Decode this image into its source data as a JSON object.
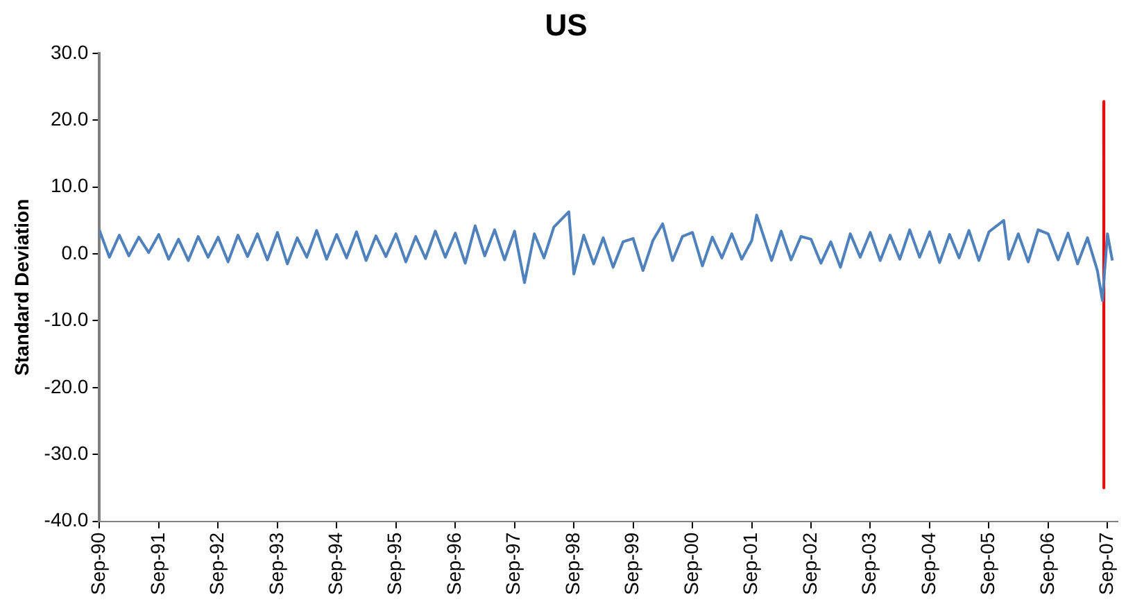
{
  "chart_data": {
    "type": "line",
    "title": "US",
    "ylabel": "Standard Deviation",
    "marker": "none",
    "grid": false,
    "legend": false,
    "xlim": [
      "1990-09-01",
      "2007-11-01"
    ],
    "xticks": [
      {
        "value": "1990-09-01",
        "label": "Sep-90"
      },
      {
        "value": "1991-09-01",
        "label": "Sep-91"
      },
      {
        "value": "1992-09-01",
        "label": "Sep-92"
      },
      {
        "value": "1993-09-01",
        "label": "Sep-93"
      },
      {
        "value": "1994-09-01",
        "label": "Sep-94"
      },
      {
        "value": "1995-09-01",
        "label": "Sep-95"
      },
      {
        "value": "1996-09-01",
        "label": "Sep-96"
      },
      {
        "value": "1997-09-01",
        "label": "Sep-97"
      },
      {
        "value": "1998-09-01",
        "label": "Sep-98"
      },
      {
        "value": "1999-09-01",
        "label": "Sep-99"
      },
      {
        "value": "2000-09-01",
        "label": "Sep-00"
      },
      {
        "value": "2001-09-01",
        "label": "Sep-01"
      },
      {
        "value": "2002-09-01",
        "label": "Sep-02"
      },
      {
        "value": "2003-09-01",
        "label": "Sep-03"
      },
      {
        "value": "2004-09-01",
        "label": "Sep-04"
      },
      {
        "value": "2005-09-01",
        "label": "Sep-05"
      },
      {
        "value": "2006-09-01",
        "label": "Sep-06"
      },
      {
        "value": "2007-09-01",
        "label": "Sep-07"
      }
    ],
    "ylim": [
      -40,
      30
    ],
    "yticks": [
      {
        "value": -40,
        "label": "-40.0"
      },
      {
        "value": -30,
        "label": "-30.0"
      },
      {
        "value": -20,
        "label": "-20.0"
      },
      {
        "value": -10,
        "label": "-10.0"
      },
      {
        "value": 0,
        "label": "0.0"
      },
      {
        "value": 10,
        "label": "10.0"
      },
      {
        "value": 20,
        "label": "20.0"
      },
      {
        "value": 30,
        "label": "30.0"
      }
    ],
    "series": [
      {
        "color": "#4f81bd",
        "x": [
          "1990-09",
          "1990-11",
          "1991-01",
          "1991-03",
          "1991-05",
          "1991-07",
          "1991-09",
          "1991-11",
          "1992-01",
          "1992-03",
          "1992-05",
          "1992-07",
          "1992-09",
          "1992-11",
          "1993-01",
          "1993-03",
          "1993-05",
          "1993-07",
          "1993-09",
          "1993-11",
          "1994-01",
          "1994-03",
          "1994-05",
          "1994-07",
          "1994-09",
          "1994-11",
          "1995-01",
          "1995-03",
          "1995-05",
          "1995-07",
          "1995-09",
          "1995-11",
          "1996-01",
          "1996-03",
          "1996-05",
          "1996-07",
          "1996-09",
          "1996-11",
          "1997-01",
          "1997-03",
          "1997-05",
          "1997-07",
          "1997-09",
          "1997-11",
          "1998-01",
          "1998-03",
          "1998-05",
          "1998-08",
          "1998-09",
          "1998-11",
          "1999-01",
          "1999-03",
          "1999-05",
          "1999-07",
          "1999-09",
          "1999-11",
          "2000-01",
          "2000-03",
          "2000-05",
          "2000-07",
          "2000-09",
          "2000-11",
          "2001-01",
          "2001-03",
          "2001-05",
          "2001-07",
          "2001-09",
          "2001-10",
          "2002-01",
          "2002-03",
          "2002-05",
          "2002-07",
          "2002-09",
          "2002-11",
          "2003-01",
          "2003-03",
          "2003-05",
          "2003-07",
          "2003-09",
          "2003-11",
          "2004-01",
          "2004-03",
          "2004-05",
          "2004-07",
          "2004-09",
          "2004-11",
          "2005-01",
          "2005-03",
          "2005-05",
          "2005-07",
          "2005-09",
          "2005-12",
          "2006-01",
          "2006-03",
          "2006-05",
          "2006-07",
          "2006-09",
          "2006-11",
          "2007-01",
          "2007-03",
          "2007-05",
          "2007-07",
          "2007-08",
          "2007-09",
          "2007-10"
        ],
        "values": [
          3.5,
          -0.5,
          2.8,
          -0.3,
          2.5,
          0.2,
          2.9,
          -0.8,
          2.2,
          -1.0,
          2.6,
          -0.5,
          2.5,
          -1.2,
          2.8,
          -0.4,
          3.0,
          -0.9,
          3.2,
          -1.5,
          2.4,
          -0.5,
          3.5,
          -0.8,
          2.9,
          -0.6,
          3.3,
          -1.0,
          2.7,
          -0.4,
          3.0,
          -1.2,
          2.6,
          -0.7,
          3.4,
          -0.5,
          3.1,
          -1.4,
          4.2,
          -0.3,
          3.6,
          -0.9,
          3.4,
          -4.3,
          3.0,
          -0.6,
          4.0,
          6.3,
          -3.0,
          2.8,
          -1.5,
          2.4,
          -2.0,
          1.8,
          2.3,
          -2.5,
          2.0,
          4.5,
          -1.0,
          2.6,
          3.2,
          -1.8,
          2.5,
          -0.6,
          3.0,
          -0.8,
          2.0,
          5.8,
          -1.0,
          3.4,
          -0.9,
          2.6,
          2.2,
          -1.4,
          1.8,
          -2.0,
          3.0,
          -0.5,
          3.2,
          -1.0,
          2.8,
          -0.8,
          3.6,
          -0.5,
          3.3,
          -1.3,
          2.9,
          -0.6,
          3.5,
          -1.0,
          3.3,
          5.0,
          -0.8,
          3.0,
          -1.2,
          3.6,
          3.0,
          -0.9,
          3.1,
          -1.5,
          2.4,
          -2.5,
          -7.0,
          3.0,
          -1.0
        ]
      },
      {
        "color": "#ff0000",
        "x": [
          "2007-08-09",
          "2007-08-10"
        ],
        "values": [
          22.8,
          -35
        ]
      }
    ]
  }
}
